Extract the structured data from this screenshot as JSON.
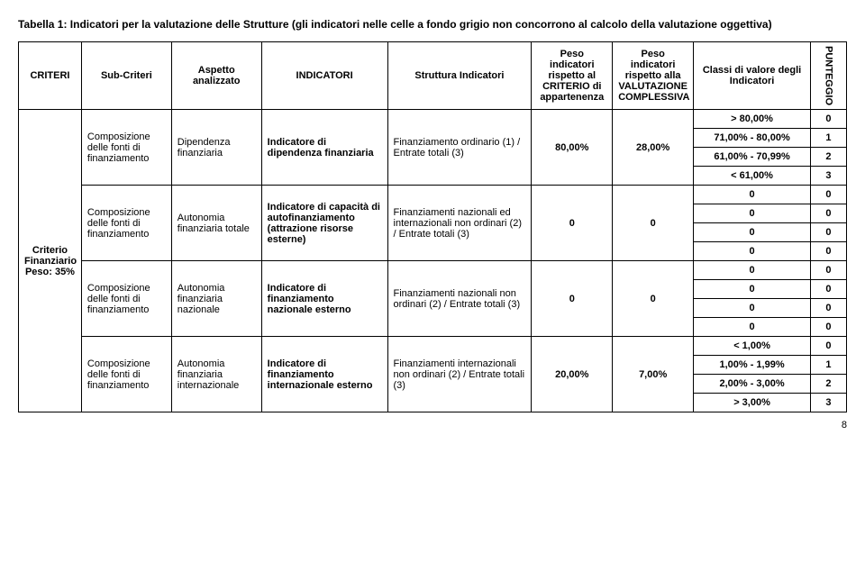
{
  "title": "Tabella 1: Indicatori per la valutazione delle Strutture (gli indicatori nelle celle a fondo grigio non concorrono al calcolo della valutazione oggettiva)",
  "headers": {
    "criteri": "CRITERI",
    "sub": "Sub-Criteri",
    "aspetto": "Aspetto analizzato",
    "indicatori": "INDICATORI",
    "struttura": "Struttura Indicatori",
    "peso1": "Peso indicatori rispetto al CRITERIO di appartenenza",
    "peso2": "Peso indicatori rispetto alla VALUTAZIONE COMPLESSIVA",
    "classi": "Classi di valore degli Indicatori",
    "punteggio": "PUNTEGGIO"
  },
  "criterio_label": "Criterio Finanziario Peso: 35%",
  "groups": [
    {
      "sub": "Composizione delle fonti di finanziamento",
      "aspetto": "Dipendenza finanziaria",
      "indicatore": "Indicatore di dipendenza finanziaria",
      "struttura": "Finanziamento ordinario (1) / Entrate totali (3)",
      "peso1": "80,00%",
      "peso2": "28,00%",
      "rows": [
        {
          "classe": "> 80,00%",
          "punti": "0"
        },
        {
          "classe": "71,00% - 80,00%",
          "punti": "1"
        },
        {
          "classe": "61,00% - 70,99%",
          "punti": "2"
        },
        {
          "classe": "< 61,00%",
          "punti": "3"
        }
      ]
    },
    {
      "sub": "Composizione delle fonti di finanziamento",
      "aspetto": "Autonomia finanziaria totale",
      "indicatore": "Indicatore di capacità di autofinanziamento (attrazione risorse esterne)",
      "struttura": "Finanziamenti nazionali ed internazionali non ordinari (2) / Entrate totali (3)",
      "peso1": "0",
      "peso2": "0",
      "rows": [
        {
          "classe": "0",
          "punti": "0"
        },
        {
          "classe": "0",
          "punti": "0"
        },
        {
          "classe": "0",
          "punti": "0"
        },
        {
          "classe": "0",
          "punti": "0"
        }
      ]
    },
    {
      "sub": "Composizione delle fonti di finanziamento",
      "aspetto": "Autonomia finanziaria nazionale",
      "indicatore": "Indicatore di finanziamento nazionale esterno",
      "struttura": "Finanziamenti nazionali non ordinari (2) / Entrate totali (3)",
      "peso1": "0",
      "peso2": "0",
      "rows": [
        {
          "classe": "0",
          "punti": "0"
        },
        {
          "classe": "0",
          "punti": "0"
        },
        {
          "classe": "0",
          "punti": "0"
        },
        {
          "classe": "0",
          "punti": "0"
        }
      ]
    },
    {
      "sub": "Composizione delle fonti di finanziamento",
      "aspetto": "Autonomia finanziaria internazionale",
      "indicatore": "Indicatore di finanziamento internazionale esterno",
      "struttura": "Finanziamenti internazionali non ordinari (2) / Entrate totali (3)",
      "peso1": "20,00%",
      "peso2": "7,00%",
      "rows": [
        {
          "classe": "< 1,00%",
          "punti": "0"
        },
        {
          "classe": "1,00% - 1,99%",
          "punti": "1"
        },
        {
          "classe": "2,00% - 3,00%",
          "punti": "2"
        },
        {
          "classe": "> 3,00%",
          "punti": "3"
        }
      ]
    }
  ],
  "page_number": "8"
}
